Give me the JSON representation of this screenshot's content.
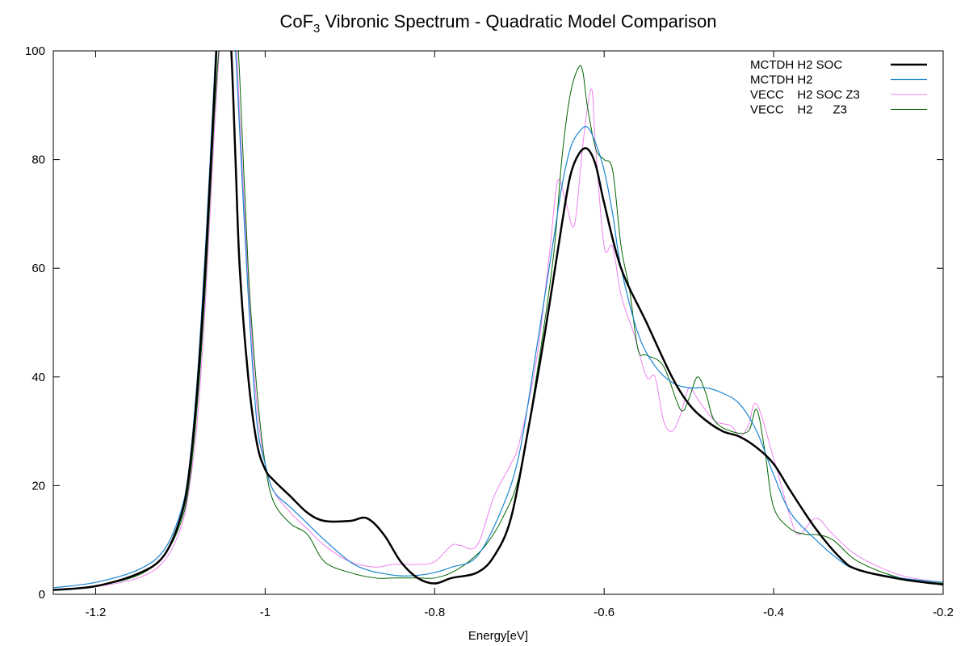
{
  "chart_data": {
    "type": "line",
    "title": "CoF",
    "title_sub": "3",
    "title_rest": " Vibronic Spectrum - Quadratic Model Comparison",
    "xlabel": "Energy[eV]",
    "ylabel": "",
    "xlim": [
      -1.25,
      -0.2
    ],
    "ylim": [
      0,
      100
    ],
    "x_ticks": [
      -1.2,
      -1.0,
      -0.8,
      -0.6,
      -0.4,
      -0.2
    ],
    "x_tick_labels": [
      "-1.2",
      "-1",
      "-0.8",
      "-0.6",
      "-0.4",
      "-0.2"
    ],
    "y_ticks": [
      0,
      20,
      40,
      60,
      80,
      100
    ],
    "y_tick_labels": [
      "0",
      "20",
      "40",
      "60",
      "80",
      "100"
    ],
    "legend_position": "top-right",
    "grid": false,
    "series": [
      {
        "name": "MCTDH H2 SOC",
        "color": "#000000",
        "width": 2.5,
        "x": [
          -1.25,
          -1.2,
          -1.15,
          -1.12,
          -1.1,
          -1.09,
          -1.08,
          -1.07,
          -1.06,
          -1.055,
          -1.05,
          -1.045,
          -1.04,
          -1.035,
          -1.03,
          -1.02,
          -1.01,
          -1.0,
          -0.99,
          -0.97,
          -0.95,
          -0.93,
          -0.9,
          -0.88,
          -0.86,
          -0.84,
          -0.82,
          -0.8,
          -0.78,
          -0.75,
          -0.73,
          -0.71,
          -0.69,
          -0.67,
          -0.65,
          -0.64,
          -0.63,
          -0.62,
          -0.61,
          -0.6,
          -0.58,
          -0.55,
          -0.52,
          -0.5,
          -0.48,
          -0.46,
          -0.44,
          -0.42,
          -0.4,
          -0.38,
          -0.35,
          -0.32,
          -0.3,
          -0.25,
          -0.2
        ],
        "y": [
          0.8,
          1.5,
          3.8,
          7,
          14,
          22,
          38,
          62,
          92,
          108,
          112,
          108,
          100,
          80,
          60,
          40,
          28,
          23,
          21,
          18,
          15,
          13.5,
          13.5,
          14,
          11,
          6,
          3,
          2,
          3,
          4,
          7,
          14,
          30,
          48,
          68,
          77,
          81,
          82,
          79,
          72,
          60,
          50,
          40,
          35,
          32,
          30,
          29,
          27,
          24,
          19,
          12,
          6.5,
          4.5,
          2.8,
          1.8
        ]
      },
      {
        "name": "MCTDH H2",
        "color": "#1a85d1",
        "width": 1.2,
        "x": [
          -1.25,
          -1.2,
          -1.15,
          -1.12,
          -1.1,
          -1.09,
          -1.08,
          -1.07,
          -1.06,
          -1.055,
          -1.05,
          -1.045,
          -1.04,
          -1.035,
          -1.03,
          -1.02,
          -1.01,
          -1.0,
          -0.99,
          -0.97,
          -0.95,
          -0.93,
          -0.9,
          -0.88,
          -0.86,
          -0.84,
          -0.82,
          -0.8,
          -0.78,
          -0.75,
          -0.72,
          -0.7,
          -0.68,
          -0.66,
          -0.65,
          -0.64,
          -0.63,
          -0.62,
          -0.61,
          -0.6,
          -0.59,
          -0.58,
          -0.56,
          -0.54,
          -0.52,
          -0.5,
          -0.48,
          -0.46,
          -0.44,
          -0.42,
          -0.4,
          -0.38,
          -0.35,
          -0.32,
          -0.3,
          -0.25,
          -0.2
        ],
        "y": [
          1.2,
          2.2,
          4.5,
          8,
          15,
          23,
          40,
          65,
          95,
          110,
          112,
          110,
          108,
          100,
          85,
          55,
          32,
          24,
          19,
          16,
          13,
          10,
          6,
          4.5,
          3.8,
          3.4,
          3.5,
          4,
          5,
          7,
          16,
          26,
          45,
          65,
          75,
          82,
          85,
          86,
          83,
          78,
          70,
          60,
          48,
          42,
          39,
          38,
          38,
          37,
          35,
          30,
          22,
          15,
          10,
          6,
          4.5,
          3,
          2.2
        ]
      },
      {
        "name": "VECC    H2 SOC Z3",
        "color": "#ee82ee",
        "width": 1.0,
        "x": [
          -1.25,
          -1.2,
          -1.15,
          -1.12,
          -1.1,
          -1.09,
          -1.08,
          -1.07,
          -1.06,
          -1.05,
          -1.04,
          -1.035,
          -1.03,
          -1.02,
          -1.01,
          -1.0,
          -0.99,
          -0.97,
          -0.95,
          -0.93,
          -0.9,
          -0.87,
          -0.85,
          -0.82,
          -0.8,
          -0.78,
          -0.77,
          -0.75,
          -0.73,
          -0.71,
          -0.7,
          -0.68,
          -0.665,
          -0.655,
          -0.645,
          -0.635,
          -0.625,
          -0.615,
          -0.61,
          -0.6,
          -0.59,
          -0.58,
          -0.565,
          -0.55,
          -0.54,
          -0.53,
          -0.52,
          -0.51,
          -0.5,
          -0.49,
          -0.47,
          -0.45,
          -0.44,
          -0.43,
          -0.42,
          -0.4,
          -0.38,
          -0.37,
          -0.35,
          -0.33,
          -0.3,
          -0.25,
          -0.2
        ],
        "y": [
          0.8,
          1.4,
          3,
          6,
          12,
          19,
          32,
          55,
          85,
          108,
          112,
          105,
          88,
          58,
          35,
          24,
          19,
          15,
          12,
          9,
          6,
          5,
          5.5,
          5.5,
          6,
          9,
          9,
          9,
          18,
          24,
          28,
          43,
          62,
          76,
          72,
          68,
          83,
          93,
          82,
          64,
          64,
          55,
          48,
          40,
          40,
          32,
          30,
          33,
          38,
          36,
          32,
          31,
          29,
          31,
          35,
          25,
          14,
          11,
          14,
          11,
          7,
          3.5,
          2.2
        ]
      },
      {
        "name": "VECC    H2      Z3",
        "color": "#006400",
        "width": 1.0,
        "x": [
          -1.25,
          -1.2,
          -1.15,
          -1.12,
          -1.1,
          -1.09,
          -1.08,
          -1.07,
          -1.06,
          -1.05,
          -1.04,
          -1.035,
          -1.03,
          -1.02,
          -1.01,
          -1.0,
          -0.99,
          -0.97,
          -0.95,
          -0.93,
          -0.9,
          -0.87,
          -0.85,
          -0.82,
          -0.8,
          -0.78,
          -0.76,
          -0.74,
          -0.72,
          -0.7,
          -0.68,
          -0.66,
          -0.65,
          -0.64,
          -0.63,
          -0.625,
          -0.62,
          -0.61,
          -0.6,
          -0.59,
          -0.58,
          -0.57,
          -0.56,
          -0.55,
          -0.53,
          -0.51,
          -0.5,
          -0.49,
          -0.48,
          -0.47,
          -0.45,
          -0.43,
          -0.42,
          -0.41,
          -0.4,
          -0.38,
          -0.36,
          -0.35,
          -0.33,
          -0.3,
          -0.25,
          -0.2
        ],
        "y": [
          0.8,
          1.5,
          3.5,
          7,
          13,
          20,
          35,
          58,
          88,
          108,
          112,
          108,
          95,
          60,
          38,
          24,
          17,
          13,
          11,
          6,
          4,
          3,
          3,
          3,
          3,
          4,
          6,
          9,
          14,
          22,
          40,
          62,
          80,
          92,
          97,
          96,
          90,
          82,
          80,
          78,
          64,
          56,
          45,
          44,
          42,
          34,
          36,
          40,
          37,
          32,
          30,
          30,
          34,
          26,
          16,
          12,
          11,
          11,
          10,
          6,
          3,
          2
        ]
      }
    ]
  }
}
